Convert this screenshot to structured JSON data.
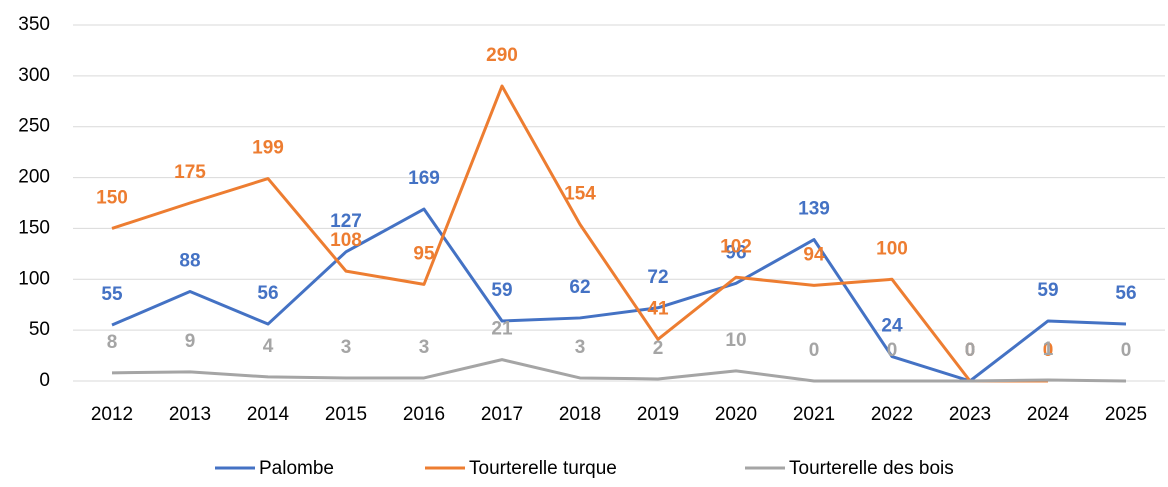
{
  "chart_data": {
    "type": "line",
    "categories": [
      "2012",
      "2013",
      "2014",
      "2015",
      "2016",
      "2017",
      "2018",
      "2019",
      "2020",
      "2021",
      "2022",
      "2023",
      "2024",
      "2025"
    ],
    "series": [
      {
        "name": "Palombe",
        "color": "#4472c4",
        "values": [
          55,
          88,
          56,
          127,
          169,
          59,
          62,
          72,
          96,
          139,
          24,
          0,
          59,
          56
        ]
      },
      {
        "name": "Tourterelle turque",
        "color": "#ed7d31",
        "values": [
          150,
          175,
          199,
          108,
          95,
          290,
          154,
          41,
          102,
          94,
          100,
          0,
          0,
          null
        ]
      },
      {
        "name": "Tourterelle des bois",
        "color": "#a5a5a5",
        "values": [
          8,
          9,
          4,
          3,
          3,
          21,
          3,
          2,
          10,
          0,
          0,
          0,
          1,
          0
        ]
      }
    ],
    "ylim": [
      0,
      350
    ],
    "yticks": [
      0,
      50,
      100,
      150,
      200,
      250,
      300,
      350
    ],
    "grid": true,
    "legend": "bottom"
  }
}
